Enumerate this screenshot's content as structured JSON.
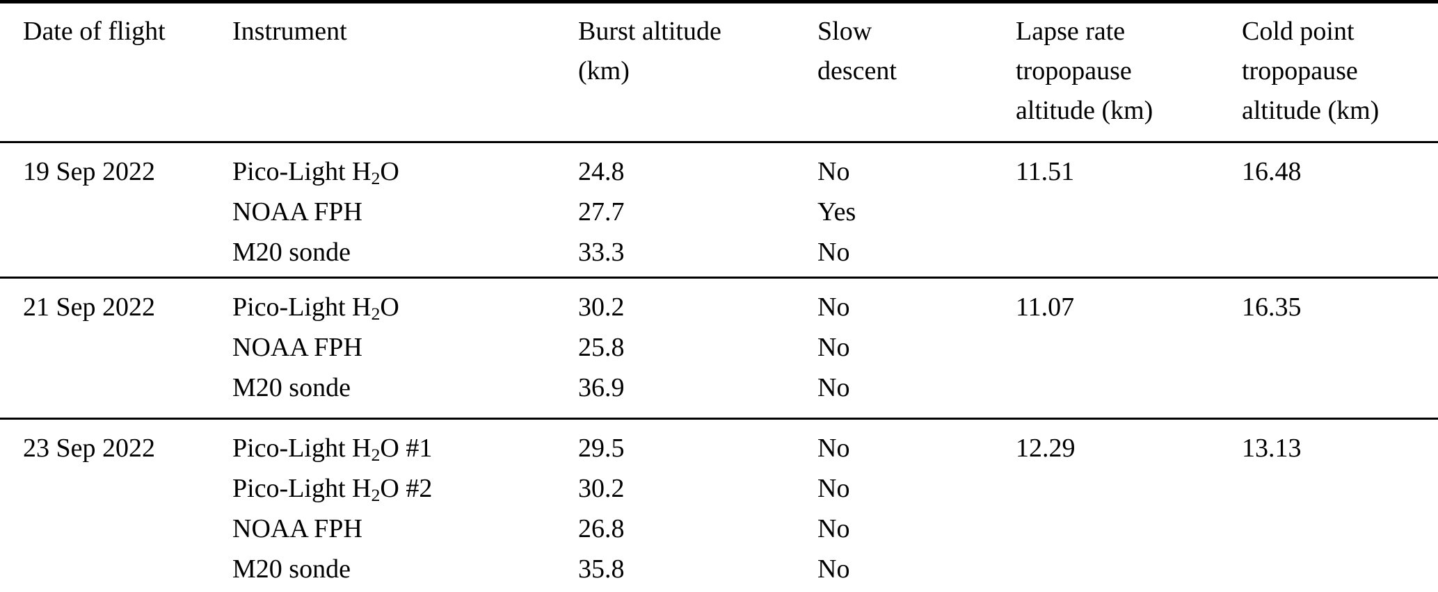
{
  "table": {
    "columns": [
      {
        "id": "date",
        "label_lines": [
          "Date of flight"
        ]
      },
      {
        "id": "instrument",
        "label_lines": [
          "Instrument"
        ]
      },
      {
        "id": "burst",
        "label_lines": [
          "Burst altitude",
          "(km)"
        ]
      },
      {
        "id": "slow",
        "label_lines": [
          "Slow",
          "descent"
        ]
      },
      {
        "id": "lapse",
        "label_lines": [
          "Lapse rate",
          "tropopause",
          "altitude (km)"
        ]
      },
      {
        "id": "cold",
        "label_lines": [
          "Cold point",
          "tropopause",
          "altitude (km)"
        ]
      }
    ],
    "groups": [
      {
        "date": "19 Sep 2022",
        "lapse_rate_tropopause_altitude_km": "11.51",
        "cold_point_tropopause_altitude_km": "16.48",
        "rows": [
          {
            "instrument": [
              {
                "text": "Pico-Light H"
              },
              {
                "text": "2",
                "sub": true
              },
              {
                "text": "O"
              }
            ],
            "burst_altitude_km": "24.8",
            "slow_descent": "No"
          },
          {
            "instrument": [
              {
                "text": "NOAA FPH"
              }
            ],
            "burst_altitude_km": "27.7",
            "slow_descent": "Yes"
          },
          {
            "instrument": [
              {
                "text": "M20 sonde"
              }
            ],
            "burst_altitude_km": "33.3",
            "slow_descent": "No"
          }
        ]
      },
      {
        "date": "21 Sep 2022",
        "lapse_rate_tropopause_altitude_km": "11.07",
        "cold_point_tropopause_altitude_km": "16.35",
        "rows": [
          {
            "instrument": [
              {
                "text": "Pico-Light H"
              },
              {
                "text": "2",
                "sub": true
              },
              {
                "text": "O"
              }
            ],
            "burst_altitude_km": "30.2",
            "slow_descent": "No"
          },
          {
            "instrument": [
              {
                "text": "NOAA FPH"
              }
            ],
            "burst_altitude_km": "25.8",
            "slow_descent": "No"
          },
          {
            "instrument": [
              {
                "text": "M20 sonde"
              }
            ],
            "burst_altitude_km": "36.9",
            "slow_descent": "No"
          }
        ]
      },
      {
        "date": "23 Sep 2022",
        "lapse_rate_tropopause_altitude_km": "12.29",
        "cold_point_tropopause_altitude_km": "13.13",
        "rows": [
          {
            "instrument": [
              {
                "text": "Pico-Light H"
              },
              {
                "text": "2",
                "sub": true
              },
              {
                "text": "O #1"
              }
            ],
            "burst_altitude_km": "29.5",
            "slow_descent": "No"
          },
          {
            "instrument": [
              {
                "text": "Pico-Light H"
              },
              {
                "text": "2",
                "sub": true
              },
              {
                "text": "O #2"
              }
            ],
            "burst_altitude_km": "30.2",
            "slow_descent": "No"
          },
          {
            "instrument": [
              {
                "text": "NOAA FPH"
              }
            ],
            "burst_altitude_km": "26.8",
            "slow_descent": "No"
          },
          {
            "instrument": [
              {
                "text": "M20 sonde"
              }
            ],
            "burst_altitude_km": "35.8",
            "slow_descent": "No"
          }
        ]
      }
    ]
  },
  "colors": {
    "background": "#ffffff",
    "text": "#000000",
    "rule": "#000000"
  }
}
